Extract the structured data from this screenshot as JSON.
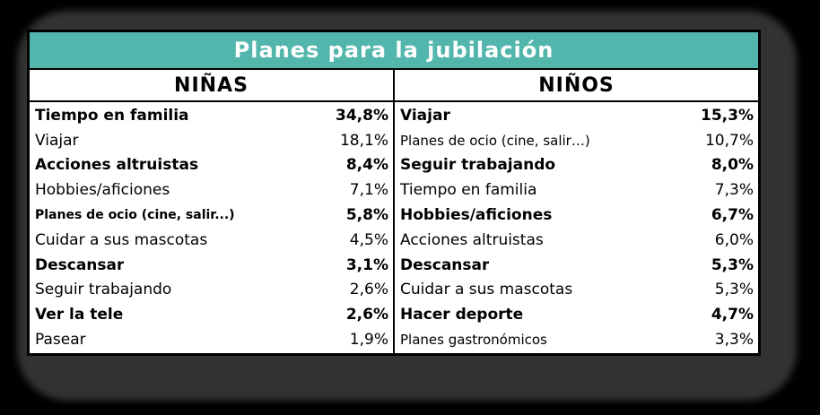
{
  "title": "Planes para la jubilación",
  "colors": {
    "title_bg": "#53B6AD",
    "title_text": "#FFFFFF",
    "table_bg": "#FFFFFF",
    "border": "#000000",
    "page_bg": "#000000",
    "shadow": "#323232"
  },
  "columns": [
    {
      "header": "NIÑAS",
      "rows": [
        {
          "label": "Tiempo en familia",
          "value": "34,8%",
          "bold": true
        },
        {
          "label": "Viajar",
          "value": "18,1%",
          "bold": false
        },
        {
          "label": "Acciones altruistas",
          "value": "8,4%",
          "bold": true
        },
        {
          "label": "Hobbies/aficiones",
          "value": "7,1%",
          "bold": false
        },
        {
          "label": "Planes de ocio (cine, salir...)",
          "value": "5,8%",
          "bold": true,
          "size": 14
        },
        {
          "label": "Cuidar a sus mascotas",
          "value": "4,5%",
          "bold": false
        },
        {
          "label": "Descansar",
          "value": "3,1%",
          "bold": true
        },
        {
          "label": "Seguir trabajando",
          "value": "2,6%",
          "bold": false
        },
        {
          "label": "Ver la tele",
          "value": "2,6%",
          "bold": true
        },
        {
          "label": "Pasear",
          "value": "1,9%",
          "bold": false
        }
      ]
    },
    {
      "header": "NIÑOS",
      "rows": [
        {
          "label": "Viajar",
          "value": "15,3%",
          "bold": true
        },
        {
          "label": "Planes de ocio (cine, salir…)",
          "value": "10,7%",
          "bold": false,
          "size": 15
        },
        {
          "label": "Seguir trabajando",
          "value": "8,0%",
          "bold": true
        },
        {
          "label": "Tiempo en familia",
          "value": "7,3%",
          "bold": false
        },
        {
          "label": "Hobbies/aficiones",
          "value": "6,7%",
          "bold": true
        },
        {
          "label": "Acciones altruistas",
          "value": "6,0%",
          "bold": false
        },
        {
          "label": "Descansar",
          "value": "5,3%",
          "bold": true
        },
        {
          "label": "Cuidar a sus mascotas",
          "value": "5,3%",
          "bold": false
        },
        {
          "label": "Hacer deporte",
          "value": "4,7%",
          "bold": true
        },
        {
          "label": "Planes gastronómicos",
          "value": "3,3%",
          "bold": false,
          "size": 15
        }
      ]
    }
  ],
  "chart_data": {
    "type": "table",
    "title": "Planes para la jubilación",
    "groups": [
      {
        "name": "NIÑAS",
        "categories": [
          "Tiempo en familia",
          "Viajar",
          "Acciones altruistas",
          "Hobbies/aficiones",
          "Planes de ocio (cine, salir...)",
          "Cuidar a sus mascotas",
          "Descansar",
          "Seguir trabajando",
          "Ver la tele",
          "Pasear"
        ],
        "values": [
          34.8,
          18.1,
          8.4,
          7.1,
          5.8,
          4.5,
          3.1,
          2.6,
          2.6,
          1.9
        ],
        "unit": "%"
      },
      {
        "name": "NIÑOS",
        "categories": [
          "Viajar",
          "Planes de ocio (cine, salir…)",
          "Seguir trabajando",
          "Tiempo en familia",
          "Hobbies/aficiones",
          "Acciones altruistas",
          "Descansar",
          "Cuidar a sus mascotas",
          "Hacer deporte",
          "Planes gastronómicos"
        ],
        "values": [
          15.3,
          10.7,
          8.0,
          7.3,
          6.7,
          6.0,
          5.3,
          5.3,
          4.7,
          3.3
        ],
        "unit": "%"
      }
    ]
  }
}
